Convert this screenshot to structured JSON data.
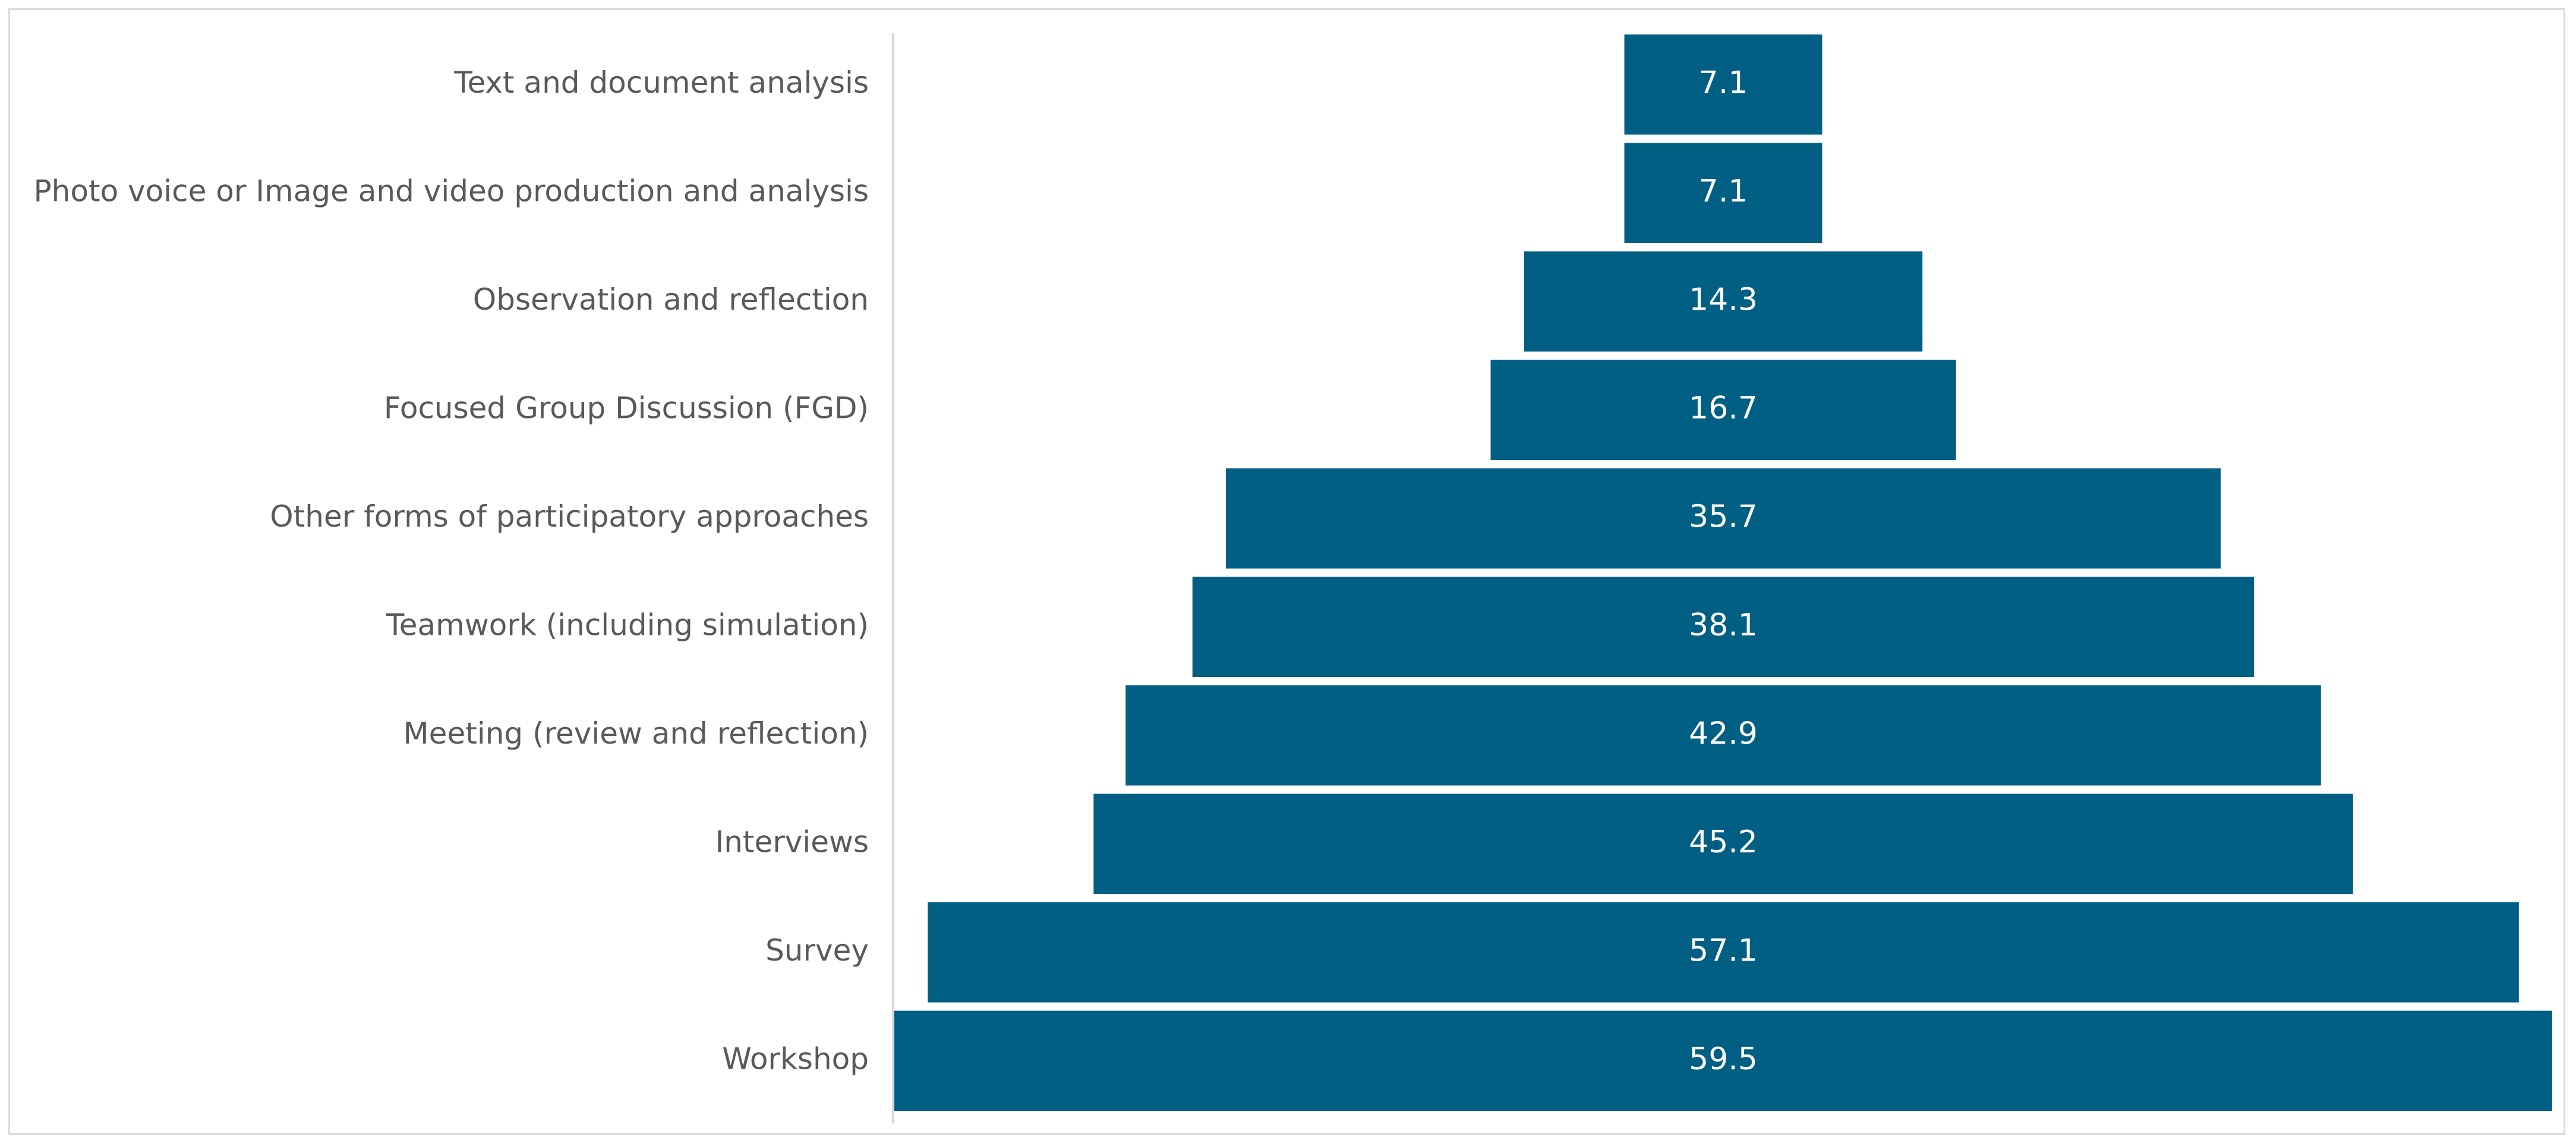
{
  "chart_data": {
    "type": "bar",
    "orientation": "horizontal",
    "style": "funnel",
    "title": "",
    "xlabel": "",
    "ylabel": "",
    "categories": [
      "Text and document analysis",
      "Photo voice or Image and video production and analysis",
      "Observation and reflection",
      "Focused Group Discussion (FGD)",
      "Other forms of participatory approaches",
      "Teamwork (including simulation)",
      "Meeting (review and reflection)",
      "Interviews",
      "Survey",
      "Workshop"
    ],
    "values": [
      7.1,
      7.1,
      14.3,
      16.7,
      35.7,
      38.1,
      42.9,
      45.2,
      57.1,
      59.5
    ],
    "value_labels": [
      "7.1",
      "7.1",
      "14.3",
      "16.7",
      "35.7",
      "38.1",
      "42.9",
      "45.2",
      "57.1",
      "59.5"
    ],
    "xlim": [
      0,
      59.5
    ],
    "bar_color": "#005f83",
    "label_color": "#595959",
    "value_label_color": "#ffffff",
    "grid": false,
    "legend": "none"
  }
}
